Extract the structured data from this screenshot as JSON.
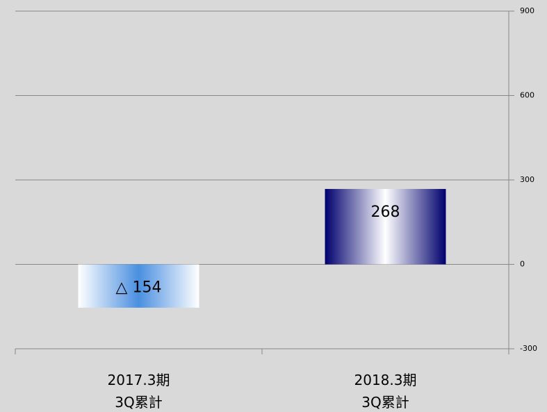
{
  "chart_data": {
    "type": "bar",
    "categories": [
      "2017.3期\n3Q累計",
      "2018.3期\n3Q累計"
    ],
    "values": [
      -154,
      268
    ],
    "value_labels": [
      "△ 154",
      "268"
    ],
    "colors": [
      "#4a8fe0",
      "#00006e"
    ],
    "ylim": [
      -300,
      900
    ],
    "yticks": [
      -300,
      0,
      300,
      600,
      900
    ],
    "grid": true
  }
}
